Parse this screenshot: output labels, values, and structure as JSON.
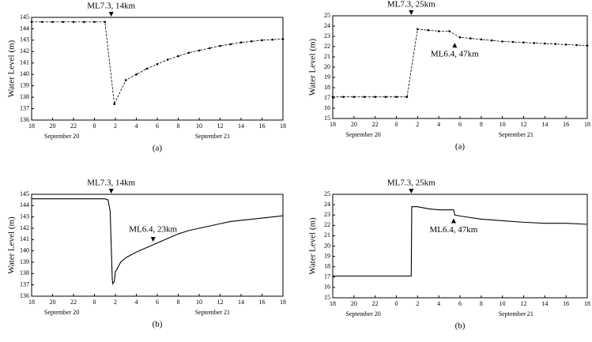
{
  "chart_data": [
    {
      "type": "line",
      "markers": true,
      "panel": "(a)",
      "ylabel": "Water Level (m)",
      "xlabels": [
        "September 20",
        "September 21"
      ],
      "color": "#000000",
      "x": [
        -6,
        -5,
        -4,
        -3,
        -2,
        -1,
        0,
        1,
        1.9,
        3,
        4,
        5,
        6,
        7,
        8,
        9,
        10,
        11,
        12,
        13,
        14,
        15,
        16,
        17,
        18
      ],
      "values": [
        144.6,
        144.6,
        144.6,
        144.6,
        144.6,
        144.6,
        144.6,
        144.6,
        137.4,
        139.5,
        140.0,
        140.5,
        140.9,
        141.3,
        141.6,
        141.9,
        142.1,
        142.3,
        142.5,
        142.65,
        142.8,
        142.9,
        143.0,
        143.05,
        143.1
      ],
      "xlim": [
        -6,
        18
      ],
      "xticks": [
        {
          "value": -6,
          "label": "18"
        },
        {
          "value": -4,
          "label": "20"
        },
        {
          "value": -2,
          "label": "22"
        },
        0,
        2,
        4,
        6,
        8,
        10,
        12,
        14,
        16,
        18
      ],
      "ylim": [
        136,
        145
      ],
      "yticks": [
        136,
        137,
        138,
        139,
        140,
        141,
        142,
        143,
        144,
        145
      ],
      "annotations": [
        {
          "text": "ML7.3, 14km",
          "x": 1.6
        }
      ]
    },
    {
      "type": "line",
      "markers": true,
      "panel": "(a)",
      "ylabel": "Water Level (m)",
      "xlabels": [
        "September 20",
        "September 21"
      ],
      "color": "#000000",
      "x": [
        -6,
        -5,
        -4,
        -3,
        -2,
        -1,
        0,
        1,
        2,
        3,
        4,
        5,
        6,
        7,
        8,
        9,
        10,
        11,
        12,
        13,
        14,
        15,
        16,
        17,
        18
      ],
      "values": [
        17.1,
        17.1,
        17.1,
        17.1,
        17.1,
        17.1,
        17.1,
        17.1,
        23.7,
        23.6,
        23.5,
        23.5,
        22.9,
        22.8,
        22.7,
        22.6,
        22.5,
        22.45,
        22.4,
        22.35,
        22.3,
        22.25,
        22.2,
        22.15,
        22.1
      ],
      "xlim": [
        -6,
        18
      ],
      "xticks": [
        {
          "value": -6,
          "label": "18"
        },
        {
          "value": -4,
          "label": "20"
        },
        {
          "value": -2,
          "label": "22"
        },
        0,
        2,
        4,
        6,
        8,
        10,
        12,
        14,
        16,
        18
      ],
      "ylim": [
        15,
        25
      ],
      "yticks": [
        15,
        16,
        17,
        18,
        19,
        20,
        21,
        22,
        23,
        24,
        25
      ],
      "annotations": [
        {
          "text": "ML7.3, 25km",
          "x": 1.4
        },
        {
          "text": "ML6.4, 47km",
          "x": 5.5,
          "y": 22.6,
          "arrow": "up"
        }
      ]
    },
    {
      "type": "line",
      "markers": false,
      "panel": "(b)",
      "ylabel": "Water Level (m)",
      "xlabels": [
        "September 20",
        "September 21"
      ],
      "color": "#000000",
      "x": [
        -6,
        -4,
        -2,
        0,
        1,
        1.3,
        1.5,
        1.7,
        1.75,
        1.9,
        2,
        2.1,
        2.5,
        3,
        4,
        5,
        6,
        7,
        8,
        9,
        10,
        11,
        12,
        13,
        14,
        15,
        16,
        17,
        18
      ],
      "values": [
        144.6,
        144.6,
        144.6,
        144.6,
        144.6,
        144.5,
        143.5,
        137.5,
        137.1,
        137.3,
        138.2,
        138.3,
        139.0,
        139.4,
        139.9,
        140.3,
        140.7,
        141.1,
        141.5,
        141.8,
        142.0,
        142.2,
        142.4,
        142.6,
        142.7,
        142.8,
        142.9,
        143.0,
        143.1
      ],
      "xlim": [
        -6,
        18
      ],
      "xticks": [
        {
          "value": -6,
          "label": "18"
        },
        {
          "value": -4,
          "label": "20"
        },
        {
          "value": -2,
          "label": "22"
        },
        0,
        2,
        4,
        6,
        8,
        10,
        12,
        14,
        16,
        18
      ],
      "ylim": [
        136,
        145
      ],
      "yticks": [
        136,
        137,
        138,
        139,
        140,
        141,
        142,
        143,
        144,
        145
      ],
      "annotations": [
        {
          "text": "ML7.3, 14km",
          "x": 1.6
        },
        {
          "text": "ML6.4, 23km",
          "x": 5.6,
          "y": 140.6,
          "arrow": "down"
        }
      ]
    },
    {
      "type": "line",
      "markers": false,
      "panel": "(b)",
      "ylabel": "Water Level (m)",
      "xlabels": [
        "September 20",
        "September 21"
      ],
      "color": "#000000",
      "x": [
        -6,
        -4,
        -2,
        0,
        1,
        1.4,
        1.45,
        2,
        3,
        4,
        5,
        5.4,
        5.5,
        6,
        8,
        10,
        12,
        14,
        16,
        18
      ],
      "values": [
        17.1,
        17.1,
        17.1,
        17.1,
        17.1,
        17.1,
        23.8,
        23.8,
        23.6,
        23.5,
        23.5,
        23.5,
        23.0,
        22.9,
        22.6,
        22.45,
        22.3,
        22.2,
        22.2,
        22.1
      ],
      "xlim": [
        -6,
        18
      ],
      "xticks": [
        {
          "value": -6,
          "label": "18"
        },
        {
          "value": -4,
          "label": "20"
        },
        {
          "value": -2,
          "label": "22"
        },
        0,
        2,
        4,
        6,
        8,
        10,
        12,
        14,
        16,
        18
      ],
      "ylim": [
        15,
        25
      ],
      "yticks": [
        15,
        16,
        17,
        18,
        19,
        20,
        21,
        22,
        23,
        24,
        25
      ],
      "annotations": [
        {
          "text": "ML7.3, 25km",
          "x": 1.4
        },
        {
          "text": "ML6.4, 47km",
          "x": 5.4,
          "y": 22.9,
          "arrow": "up"
        }
      ]
    }
  ]
}
